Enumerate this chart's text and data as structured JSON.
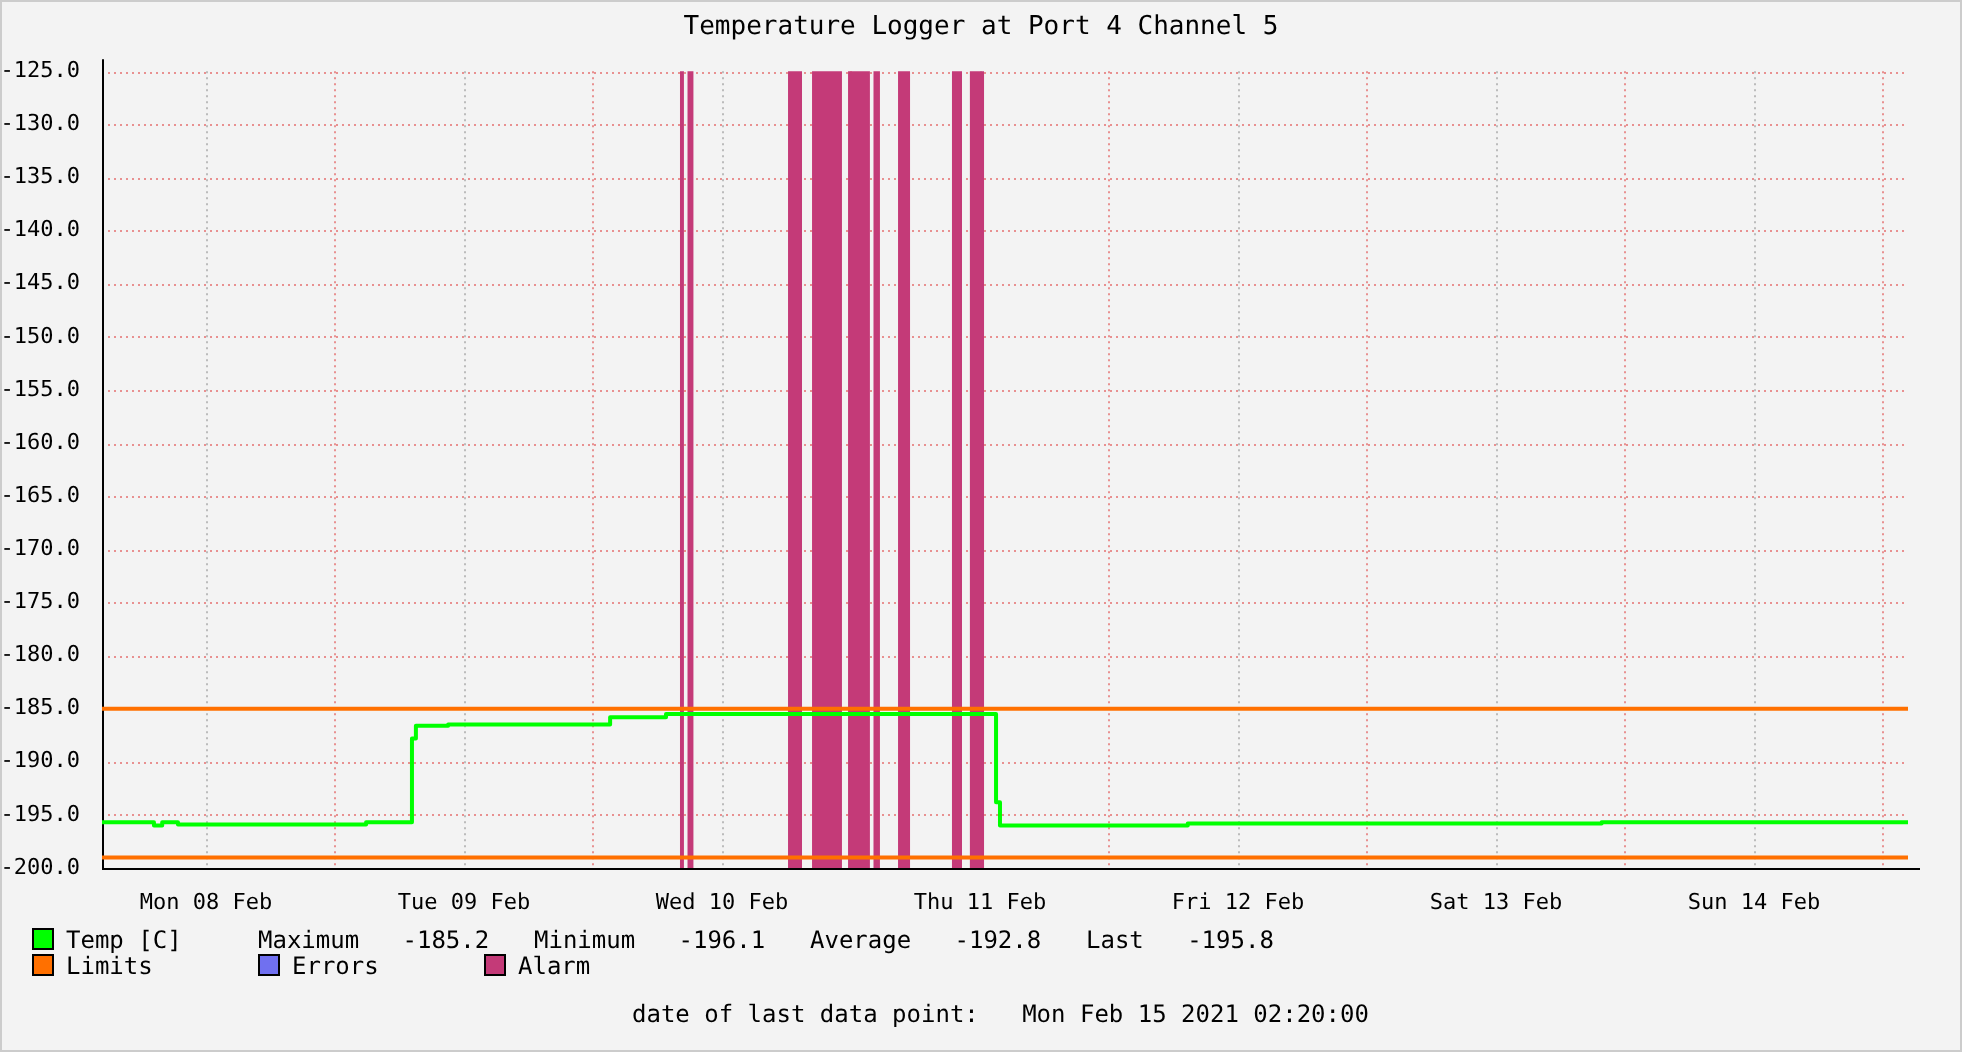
{
  "chart_data": {
    "type": "step",
    "title": "Temperature Logger at Port 4 Channel 5",
    "xlim": [
      "2021-02-08T02:20",
      "2021-02-15T02:20"
    ],
    "xticks": [
      {
        "value": "2021-02-08T12:00",
        "label": "Mon 08 Feb"
      },
      {
        "value": "2021-02-09T00:00",
        "label": null
      },
      {
        "value": "2021-02-09T12:00",
        "label": "Tue 09 Feb"
      },
      {
        "value": "2021-02-10T00:00",
        "label": null
      },
      {
        "value": "2021-02-10T12:00",
        "label": "Wed 10 Feb"
      },
      {
        "value": "2021-02-11T00:00",
        "label": null
      },
      {
        "value": "2021-02-11T12:00",
        "label": "Thu 11 Feb"
      },
      {
        "value": "2021-02-12T00:00",
        "label": null
      },
      {
        "value": "2021-02-12T12:00",
        "label": "Fri 12 Feb"
      },
      {
        "value": "2021-02-13T00:00",
        "label": null
      },
      {
        "value": "2021-02-13T12:00",
        "label": "Sat 13 Feb"
      },
      {
        "value": "2021-02-14T00:00",
        "label": null
      },
      {
        "value": "2021-02-14T12:00",
        "label": "Sun 14 Feb"
      },
      {
        "value": "2021-02-15T00:00",
        "label": null
      }
    ],
    "ylim": [
      -200,
      -125
    ],
    "yticks": [
      {
        "value": -200,
        "label": "-200.0"
      },
      {
        "value": -195,
        "label": "-195.0"
      },
      {
        "value": -190,
        "label": "-190.0"
      },
      {
        "value": -185,
        "label": "-185.0"
      },
      {
        "value": -180,
        "label": "-180.0"
      },
      {
        "value": -175,
        "label": "-175.0"
      },
      {
        "value": -170,
        "label": "-170.0"
      },
      {
        "value": -165,
        "label": "-165.0"
      },
      {
        "value": -160,
        "label": "-160.0"
      },
      {
        "value": -155,
        "label": "-155.0"
      },
      {
        "value": -150,
        "label": "-150.0"
      },
      {
        "value": -145,
        "label": "-145.0"
      },
      {
        "value": -140,
        "label": "-140.0"
      },
      {
        "value": -135,
        "label": "-135.0"
      },
      {
        "value": -130,
        "label": "-130.0"
      },
      {
        "value": -125,
        "label": "-125.0"
      }
    ],
    "grid": true,
    "legend": "bottom",
    "series": [
      {
        "name": "Temp [C]",
        "type": "step",
        "color": "#00ff00",
        "x": [
          "2021-02-08T02:20",
          "2021-02-08T07:10",
          "2021-02-08T07:56",
          "2021-02-08T09:24",
          "2021-02-09T02:54",
          "2021-02-09T07:10",
          "2021-02-09T07:32",
          "2021-02-09T10:32",
          "2021-02-10T01:36",
          "2021-02-10T06:48",
          "2021-02-11T13:30",
          "2021-02-11T13:52",
          "2021-02-12T07:20",
          "2021-02-13T21:50",
          "2021-02-15T02:20"
        ],
        "values": [
          -195.7,
          -196.0,
          -195.7,
          -195.9,
          -195.7,
          -187.8,
          -186.6,
          -186.5,
          -185.8,
          -185.5,
          -193.8,
          -196.0,
          -195.8,
          -195.7,
          -195.7
        ]
      },
      {
        "name": "Limits",
        "type": "line",
        "color": "#ff7000",
        "x": [
          "2021-02-08T02:20",
          "2021-02-15T02:20"
        ],
        "values": [
          -185,
          -185
        ]
      },
      {
        "type": "line",
        "color": "#ff7000",
        "x": [
          "2021-02-08T02:20",
          "2021-02-15T02:20"
        ],
        "values": [
          -199,
          -199
        ]
      },
      {
        "name": "Errors",
        "type": "line",
        "color": "#7070f0",
        "values": [
          null
        ]
      }
    ],
    "bands": [
      {
        "axis": "x",
        "from": "2021-02-10T08:06",
        "to": "2021-02-10T08:28",
        "label": "Alarm",
        "color": "#c43a78"
      },
      {
        "axis": "x",
        "from": "2021-02-10T08:48",
        "to": "2021-02-10T09:21",
        "color": "#c43a78"
      },
      {
        "axis": "x",
        "from": "2021-02-10T18:09",
        "to": "2021-02-10T19:27",
        "color": "#c43a78"
      },
      {
        "axis": "x",
        "from": "2021-02-10T20:23",
        "to": "2021-02-10T23:10",
        "color": "#c43a78"
      },
      {
        "axis": "x",
        "from": "2021-02-10T23:44",
        "to": "2021-02-11T01:46",
        "color": "#c43a78"
      },
      {
        "axis": "x",
        "from": "2021-02-11T02:06",
        "to": "2021-02-11T02:42",
        "color": "#c43a78"
      },
      {
        "axis": "x",
        "from": "2021-02-11T04:23",
        "to": "2021-02-11T05:30",
        "color": "#c43a78"
      },
      {
        "axis": "x",
        "from": "2021-02-11T09:24",
        "to": "2021-02-11T10:20",
        "color": "#c43a78"
      },
      {
        "axis": "x",
        "from": "2021-02-11T11:04",
        "to": "2021-02-11T12:23",
        "color": "#c43a78"
      }
    ],
    "annotations": [
      "Maximum   -185.2",
      "Minimum   -196.1",
      "Average   -192.8",
      "Last   -195.8",
      "date of last data point:   Mon Feb 15 2021 02:20:00"
    ]
  }
}
